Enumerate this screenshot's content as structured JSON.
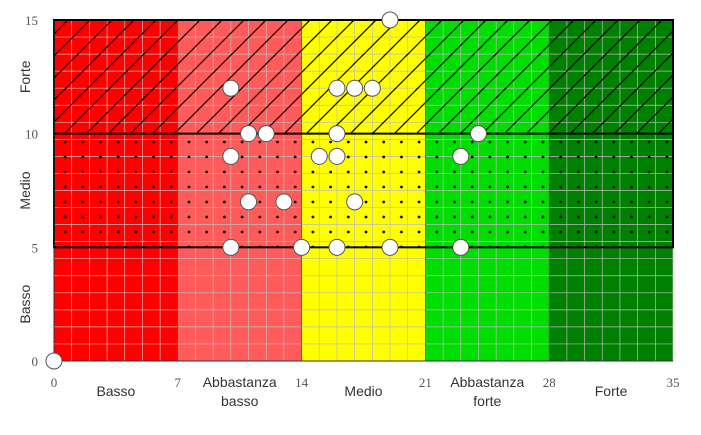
{
  "colors": {
    "bands": [
      "#ff0000",
      "#ff5b5b",
      "#ffff00",
      "#00dd00",
      "#008000"
    ],
    "grid": "#bcbcbc",
    "outline": "#000000",
    "point_fill": "#ffffff",
    "point_stroke": "#555555"
  },
  "chart_data": {
    "type": "scatter",
    "xlim": [
      0,
      35
    ],
    "ylim": [
      0,
      15
    ],
    "x_ticks": [
      0,
      7,
      14,
      21,
      28,
      35
    ],
    "y_ticks": [
      0,
      5,
      10,
      15
    ],
    "grid": true,
    "x_bands": [
      {
        "from": 0,
        "to": 7,
        "label": "Basso"
      },
      {
        "from": 7,
        "to": 14,
        "label": "Abbastanza basso"
      },
      {
        "from": 14,
        "to": 21,
        "label": "Medio"
      },
      {
        "from": 21,
        "to": 28,
        "label": "Abbastanza forte"
      },
      {
        "from": 28,
        "to": 35,
        "label": "Forte"
      }
    ],
    "y_bands": [
      {
        "from": 0,
        "to": 5,
        "label": "Basso",
        "pattern": "none"
      },
      {
        "from": 5,
        "to": 10,
        "label": "Medio",
        "pattern": "dots"
      },
      {
        "from": 10,
        "to": 15,
        "label": "Forte",
        "pattern": "diagonal-hatch"
      }
    ],
    "points": [
      {
        "x": 0,
        "y": 0
      },
      {
        "x": 10,
        "y": 12
      },
      {
        "x": 11,
        "y": 10
      },
      {
        "x": 12,
        "y": 10
      },
      {
        "x": 10,
        "y": 9
      },
      {
        "x": 11,
        "y": 7
      },
      {
        "x": 13,
        "y": 7
      },
      {
        "x": 10,
        "y": 5
      },
      {
        "x": 14,
        "y": 5
      },
      {
        "x": 16,
        "y": 12
      },
      {
        "x": 17,
        "y": 12
      },
      {
        "x": 18,
        "y": 12
      },
      {
        "x": 19,
        "y": 15
      },
      {
        "x": 16,
        "y": 10
      },
      {
        "x": 15,
        "y": 9
      },
      {
        "x": 16,
        "y": 9
      },
      {
        "x": 17,
        "y": 7
      },
      {
        "x": 16,
        "y": 5
      },
      {
        "x": 19,
        "y": 5
      },
      {
        "x": 24,
        "y": 10
      },
      {
        "x": 23,
        "y": 9
      },
      {
        "x": 23,
        "y": 5
      }
    ]
  }
}
